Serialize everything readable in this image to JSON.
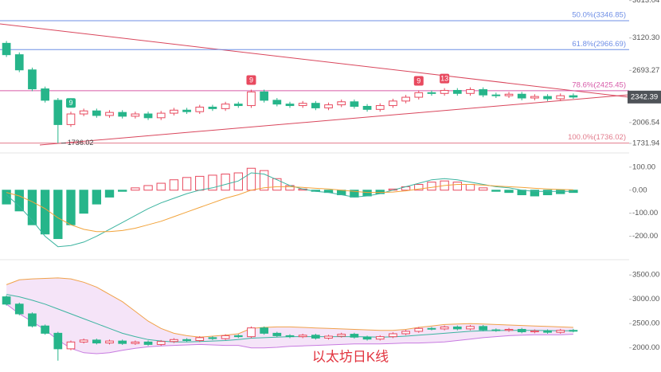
{
  "chart_data": [
    {
      "type": "candlestick",
      "open": [
        3050,
        2900,
        2700,
        2450,
        2300,
        1980,
        2120,
        2160,
        2100,
        2140,
        2090,
        2120,
        2070,
        2130,
        2170,
        2150,
        2210,
        2190,
        2250,
        2230,
        2410,
        2300,
        2250,
        2230,
        2260,
        2200,
        2240,
        2280,
        2220,
        2180,
        2230,
        2290,
        2340,
        2400,
        2390,
        2430,
        2390,
        2440,
        2370,
        2360,
        2380,
        2330,
        2350,
        2320,
        2360
      ],
      "high": [
        3080,
        2930,
        2730,
        2480,
        2330,
        2150,
        2190,
        2190,
        2170,
        2170,
        2150,
        2150,
        2160,
        2200,
        2200,
        2240,
        2240,
        2280,
        2280,
        2440,
        2440,
        2330,
        2280,
        2290,
        2290,
        2270,
        2310,
        2310,
        2250,
        2260,
        2320,
        2370,
        2430,
        2430,
        2460,
        2460,
        2470,
        2470,
        2400,
        2410,
        2410,
        2380,
        2380,
        2390,
        2390
      ],
      "low": [
        2870,
        2670,
        2420,
        2270,
        1736.02,
        1950,
        2090,
        2070,
        2070,
        2060,
        2060,
        2040,
        2040,
        2100,
        2120,
        2120,
        2160,
        2160,
        2200,
        2200,
        2270,
        2220,
        2200,
        2200,
        2170,
        2170,
        2210,
        2190,
        2150,
        2150,
        2200,
        2260,
        2310,
        2360,
        2360,
        2360,
        2360,
        2340,
        2330,
        2330,
        2300,
        2300,
        2290,
        2290,
        2320
      ],
      "close": [
        2900,
        2700,
        2450,
        2300,
        1980,
        2120,
        2160,
        2100,
        2140,
        2090,
        2120,
        2070,
        2130,
        2170,
        2150,
        2210,
        2190,
        2250,
        2230,
        2410,
        2300,
        2250,
        2230,
        2260,
        2200,
        2240,
        2280,
        2220,
        2180,
        2230,
        2290,
        2340,
        2400,
        2390,
        2430,
        2390,
        2440,
        2370,
        2360,
        2380,
        2330,
        2350,
        2320,
        2360,
        2342.39
      ],
      "up_color": "#e84a5f",
      "down_color": "#26b58a",
      "ylim": [
        1680,
        3620
      ],
      "yticks": [
        3613.04,
        {
          "value": 3120.3,
          "label": "3120.30"
        },
        2693.27,
        2006.54,
        1731.94
      ],
      "fib_levels": [
        {
          "value": 3346.85,
          "label": "50.0%(3346.85)",
          "color": "#6f8fe6"
        },
        {
          "value": 2966.69,
          "label": "61.8%(2966.69)",
          "color": "#6f8fe6"
        },
        {
          "value": 2425.45,
          "label": "78.6%(2425.45)",
          "color": "#d75aa8"
        },
        {
          "value": 1736.02,
          "label": "100.0%(1736.02)",
          "color": "#e27b8c"
        }
      ],
      "td_markers": [
        "9",
        "9",
        "9",
        "13"
      ]
    },
    {
      "type": "macd",
      "histogram": [
        -60,
        -90,
        -150,
        -190,
        -210,
        -150,
        -100,
        -60,
        -30,
        -5,
        10,
        20,
        30,
        45,
        55,
        60,
        65,
        70,
        75,
        95,
        85,
        50,
        20,
        5,
        -5,
        -10,
        -20,
        -30,
        -25,
        -15,
        5,
        15,
        25,
        35,
        40,
        35,
        25,
        10,
        -5,
        -10,
        -20,
        -25,
        -20,
        -15,
        -10
      ],
      "dif": [
        -20,
        -70,
        -130,
        -200,
        -245,
        -240,
        -225,
        -200,
        -170,
        -140,
        -110,
        -80,
        -55,
        -35,
        -15,
        0,
        10,
        25,
        40,
        75,
        70,
        45,
        20,
        5,
        -5,
        -10,
        -20,
        -30,
        -25,
        -15,
        0,
        15,
        30,
        45,
        50,
        45,
        35,
        25,
        15,
        10,
        0,
        -5,
        -5,
        -5,
        -5
      ],
      "dea": [
        -10,
        -25,
        -50,
        -80,
        -120,
        -150,
        -170,
        -180,
        -180,
        -175,
        -165,
        -150,
        -135,
        -115,
        -95,
        -75,
        -55,
        -35,
        -20,
        0,
        10,
        15,
        15,
        12,
        8,
        5,
        0,
        -5,
        -10,
        -10,
        -8,
        -3,
        5,
        12,
        20,
        25,
        25,
        22,
        18,
        15,
        12,
        8,
        5,
        3,
        2
      ],
      "dif_color": "#3cb4a0",
      "dea_color": "#f2a33a",
      "up_color": "#e84a5f",
      "down_color": "#26b58a",
      "ylim": [
        -260,
        120
      ],
      "yticks": [
        {
          "value": 100,
          "label": "100.00"
        },
        {
          "value": 0,
          "label": "0.00"
        },
        {
          "value": -100,
          "label": "-100.00"
        },
        {
          "value": -200,
          "label": "-200.00"
        }
      ]
    },
    {
      "type": "bollinger",
      "upper": [
        3300,
        3400,
        3420,
        3430,
        3440,
        3420,
        3350,
        3250,
        3100,
        2950,
        2750,
        2550,
        2400,
        2300,
        2250,
        2220,
        2240,
        2260,
        2290,
        2400,
        2420,
        2430,
        2430,
        2420,
        2410,
        2400,
        2390,
        2380,
        2370,
        2360,
        2360,
        2380,
        2420,
        2450,
        2480,
        2490,
        2500,
        2490,
        2480,
        2470,
        2460,
        2450,
        2440,
        2430,
        2420
      ],
      "mid": [
        3100,
        3050,
        2980,
        2900,
        2800,
        2700,
        2600,
        2500,
        2400,
        2300,
        2230,
        2170,
        2140,
        2120,
        2120,
        2130,
        2140,
        2150,
        2170,
        2200,
        2210,
        2220,
        2230,
        2230,
        2230,
        2230,
        2230,
        2230,
        2225,
        2220,
        2225,
        2240,
        2260,
        2280,
        2300,
        2320,
        2340,
        2350,
        2355,
        2360,
        2360,
        2360,
        2355,
        2350,
        2350
      ],
      "lower": [
        2900,
        2700,
        2540,
        2370,
        2160,
        1990,
        1900,
        1880,
        1900,
        1950,
        1990,
        2020,
        2040,
        2050,
        2060,
        2070,
        2060,
        2050,
        2050,
        2000,
        2000,
        2010,
        2030,
        2040,
        2050,
        2060,
        2070,
        2080,
        2080,
        2080,
        2090,
        2100,
        2100,
        2110,
        2120,
        2150,
        2180,
        2210,
        2230,
        2250,
        2260,
        2270,
        2270,
        2270,
        2280
      ],
      "upper_color": "#f0a24a",
      "mid_color": "#3cb4a0",
      "lower_color": "#c77be0",
      "ylim": [
        1650,
        3700
      ],
      "yticks": [
        {
          "value": 3500,
          "label": "3500.00"
        },
        {
          "value": 3000,
          "label": "3000.00"
        },
        {
          "value": 2500,
          "label": "2500.00"
        },
        {
          "value": 2000,
          "label": "2000.00"
        }
      ],
      "annotation": "以太坊日K线"
    }
  ]
}
